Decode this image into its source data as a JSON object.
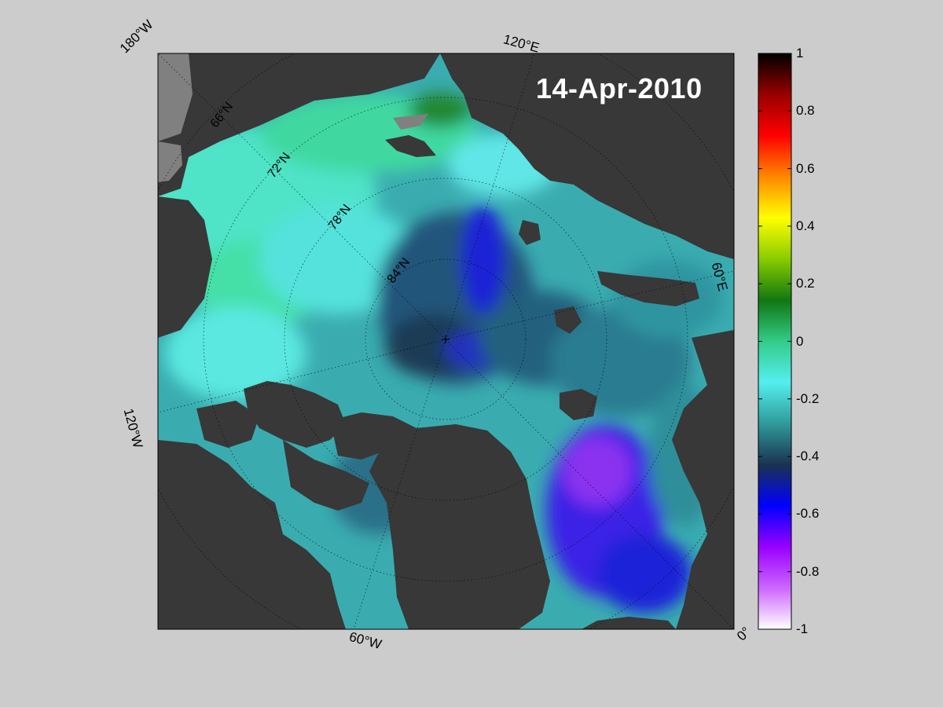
{
  "date": "14-Apr-2010",
  "longitude_labels": {
    "w180": "180°W",
    "e120": "120°E",
    "e60": "60°E",
    "w120": "120°W",
    "w60": "60°W",
    "zero": "0°"
  },
  "latitude_labels": [
    "66°N",
    "72°N",
    "78°N",
    "84°N"
  ],
  "colorbar": {
    "min": -1,
    "max": 1,
    "ticks": [
      "1",
      "0.8",
      "0.6",
      "0.4",
      "0.2",
      "0",
      "-0.2",
      "-0.4",
      "-0.6",
      "-0.8",
      "-1"
    ],
    "colors": [
      "#ffffff",
      "#cc66ff",
      "#9900ff",
      "#0000ff",
      "#1a3350",
      "#2e9a9a",
      "#55eeee",
      "#33cc88",
      "#117711",
      "#88cc00",
      "#ffff00",
      "#ff8800",
      "#ff0000",
      "#990000",
      "#000000"
    ]
  },
  "colors": {
    "land": "#383838",
    "background": "#cccccc"
  }
}
